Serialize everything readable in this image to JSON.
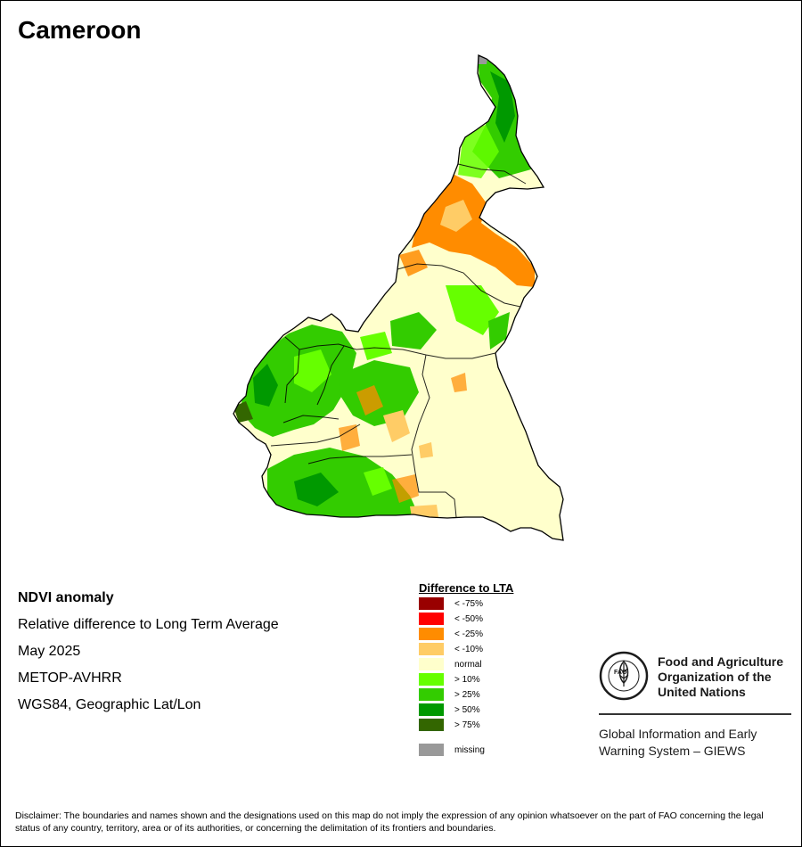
{
  "title": "Cameroon",
  "info": {
    "heading": "NDVI anomaly",
    "subtitle": "Relative difference to Long Term Average",
    "period": "May 2025",
    "sensor": "METOP-AVHRR",
    "projection": "WGS84, Geographic Lat/Lon"
  },
  "legend": {
    "title": "Difference to LTA",
    "items": [
      {
        "label": "< -75%",
        "color": "#990000"
      },
      {
        "label": "< -50%",
        "color": "#ff0000"
      },
      {
        "label": "< -25%",
        "color": "#ff8c00"
      },
      {
        "label": "< -10%",
        "color": "#ffcc66"
      },
      {
        "label": "normal",
        "color": "#ffffcc"
      },
      {
        "label": "> 10%",
        "color": "#66ff00"
      },
      {
        "label": "> 25%",
        "color": "#33cc00"
      },
      {
        "label": "> 50%",
        "color": "#009900"
      },
      {
        "label": "> 75%",
        "color": "#336600"
      }
    ],
    "missing": {
      "label": "missing",
      "color": "#999999"
    }
  },
  "org": {
    "logo_text": "FAO",
    "name": "Food and Agriculture Organization of the United Nations",
    "giews": "Global Information and Early Warning System – GIEWS"
  },
  "disclaimer": "Disclaimer: The boundaries and names shown and the designations used on this map do not imply the expression of any opinion whatsoever on the part of FAO concerning the legal status of any country, territory, area or of its authorities, or concerning the delimitation of its frontiers and boundaries."
}
